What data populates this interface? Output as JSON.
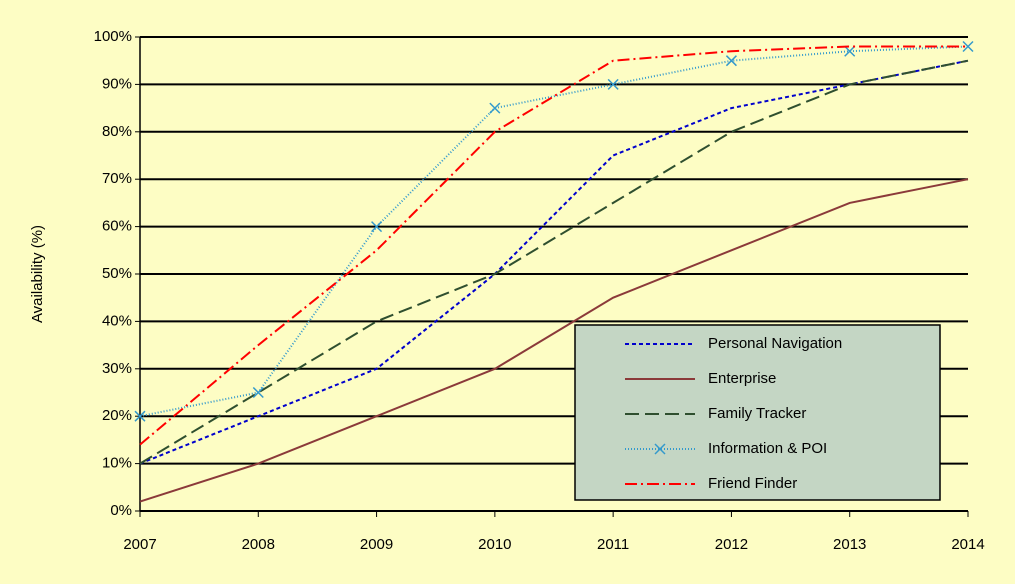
{
  "chart_data": {
    "type": "line",
    "y_label": "Availability (%)",
    "x": [
      2007,
      2008,
      2009,
      2010,
      2011,
      2012,
      2013,
      2014
    ],
    "xlim": [
      2007,
      2014
    ],
    "xticks": [
      2007,
      2008,
      2009,
      2010,
      2011,
      2012,
      2013,
      2014
    ],
    "ylim": [
      0,
      100
    ],
    "yticks": [
      {
        "value": 0,
        "label": "0%"
      },
      {
        "value": 10,
        "label": "10%"
      },
      {
        "value": 20,
        "label": "20%"
      },
      {
        "value": 30,
        "label": "30%"
      },
      {
        "value": 40,
        "label": "40%"
      },
      {
        "value": 50,
        "label": "50%"
      },
      {
        "value": 60,
        "label": "60%"
      },
      {
        "value": 70,
        "label": "70%"
      },
      {
        "value": 80,
        "label": "80%"
      },
      {
        "value": 90,
        "label": "90%"
      },
      {
        "value": 100,
        "label": "100%"
      }
    ],
    "grid": true,
    "legend": "lower right",
    "series": [
      {
        "name": "Personal Navigation",
        "color": "#0000cc",
        "dash": "4,3",
        "values": [
          10,
          20,
          30,
          50,
          75,
          85,
          90,
          95
        ]
      },
      {
        "name": "Enterprise",
        "color": "#8b3a3a",
        "dash": "none",
        "values": [
          2,
          10,
          20,
          30,
          45,
          55,
          65,
          70
        ]
      },
      {
        "name": "Family Tracker",
        "color": "#2f4f2f",
        "dash": "14,6",
        "values": [
          10,
          25,
          40,
          50,
          65,
          80,
          90,
          95
        ]
      },
      {
        "name": "Information & POI",
        "color": "#3399cc",
        "dash": "1,2",
        "marker": "x",
        "values": [
          20,
          25,
          60,
          85,
          90,
          95,
          97,
          98
        ]
      },
      {
        "name": "Friend Finder",
        "color": "#ff0000",
        "dash": "12,4,2,4",
        "values": [
          14,
          35,
          55,
          80,
          95,
          97,
          98,
          98
        ]
      }
    ]
  }
}
